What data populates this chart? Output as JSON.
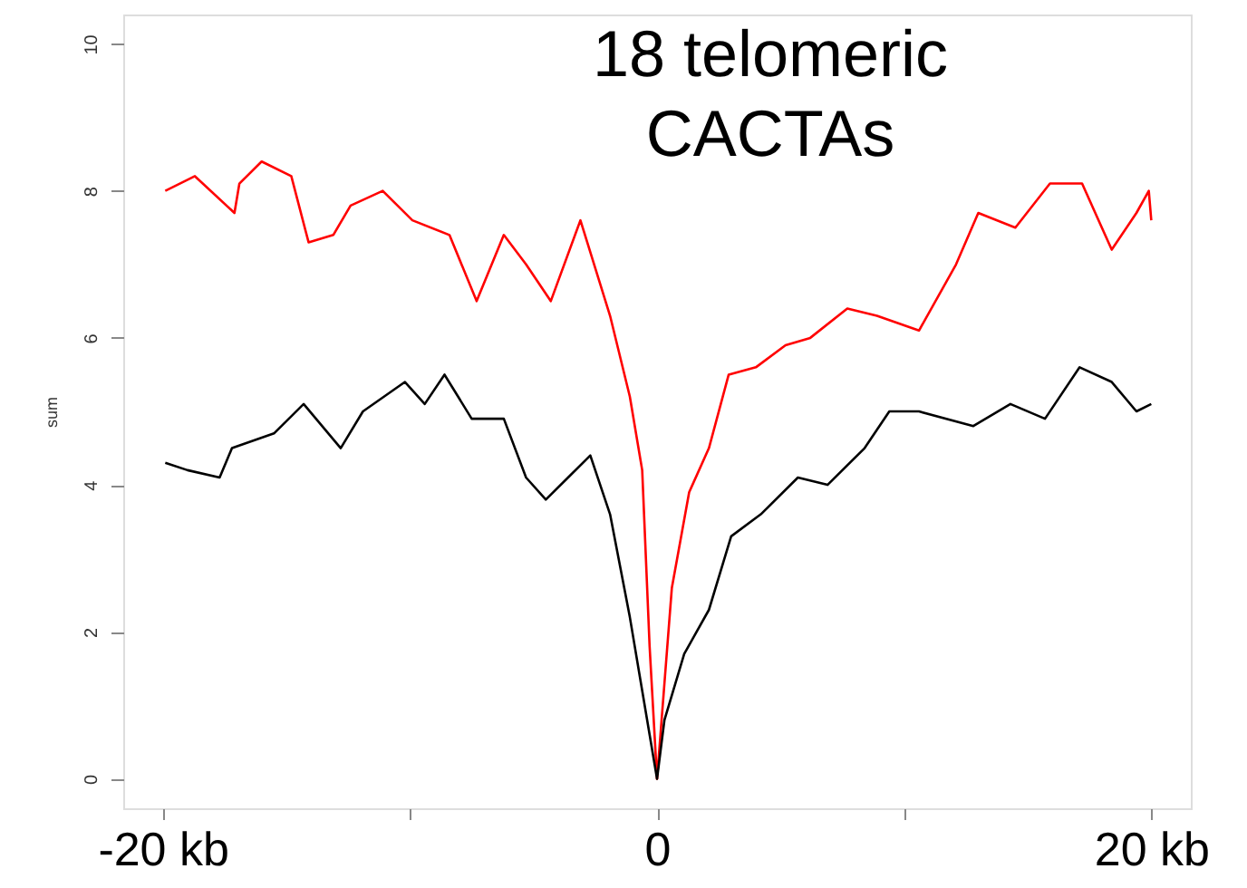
{
  "chart_data": {
    "type": "line",
    "title": "18 telomeric\nCACTAs",
    "ylabel": "sum",
    "xlim": [
      -21.6,
      21.6
    ],
    "ylim": [
      -0.4,
      10.4
    ],
    "xticks": [
      {
        "value": -20,
        "label": "-20 kb"
      },
      {
        "value": -10,
        "label": null
      },
      {
        "value": 0,
        "label": "0"
      },
      {
        "value": 10,
        "label": null
      },
      {
        "value": 20,
        "label": "20 kb"
      }
    ],
    "yticks": [
      0,
      2,
      4,
      6,
      8,
      10
    ],
    "grid": false,
    "marker": "none",
    "line_style": "solid",
    "series": [
      {
        "color": "#ff0000",
        "x": [
          -19.9,
          -18.7,
          -17.1,
          -16.9,
          -16.0,
          -14.8,
          -14.1,
          -13.1,
          -12.4,
          -11.1,
          -9.9,
          -8.4,
          -7.3,
          -6.2,
          -5.3,
          -4.3,
          -3.1,
          -1.9,
          -1.1,
          -0.6,
          -0.3,
          0,
          0.6,
          1.3,
          2.1,
          2.9,
          4.0,
          5.2,
          6.2,
          7.7,
          8.9,
          10.6,
          12.1,
          13.0,
          14.5,
          15.9,
          17.2,
          18.4,
          19.4,
          19.9,
          20
        ],
        "values": [
          8.0,
          8.2,
          7.7,
          8.1,
          8.4,
          8.2,
          7.3,
          7.4,
          7.8,
          8.0,
          7.6,
          7.4,
          6.5,
          7.4,
          7.0,
          6.5,
          7.6,
          6.3,
          5.2,
          4.2,
          1.8,
          0.0,
          2.6,
          3.9,
          4.5,
          5.5,
          5.6,
          5.9,
          6.0,
          6.4,
          6.3,
          6.1,
          7.0,
          7.7,
          7.5,
          8.1,
          8.1,
          7.2,
          7.7,
          8.0,
          7.6
        ]
      },
      {
        "color": "#000000",
        "x": [
          -19.9,
          -19.0,
          -17.7,
          -17.2,
          -15.5,
          -14.3,
          -12.8,
          -11.9,
          -10.2,
          -9.4,
          -8.6,
          -7.5,
          -6.2,
          -5.3,
          -4.5,
          -3.6,
          -2.7,
          -1.9,
          -1.1,
          -0.6,
          0,
          0.3,
          1.1,
          2.1,
          3.0,
          4.2,
          5.7,
          6.9,
          8.4,
          9.4,
          10.6,
          12.8,
          14.3,
          15.7,
          17.1,
          18.4,
          19.4,
          20
        ],
        "values": [
          4.3,
          4.2,
          4.1,
          4.5,
          4.7,
          5.1,
          4.5,
          5.0,
          5.4,
          5.1,
          5.5,
          4.9,
          4.9,
          4.1,
          3.8,
          4.1,
          4.4,
          3.6,
          2.2,
          1.2,
          0.0,
          0.8,
          1.7,
          2.3,
          3.3,
          3.6,
          4.1,
          4.0,
          4.5,
          5.0,
          5.0,
          4.8,
          5.1,
          4.9,
          5.6,
          5.4,
          5.0,
          5.1
        ]
      }
    ]
  }
}
